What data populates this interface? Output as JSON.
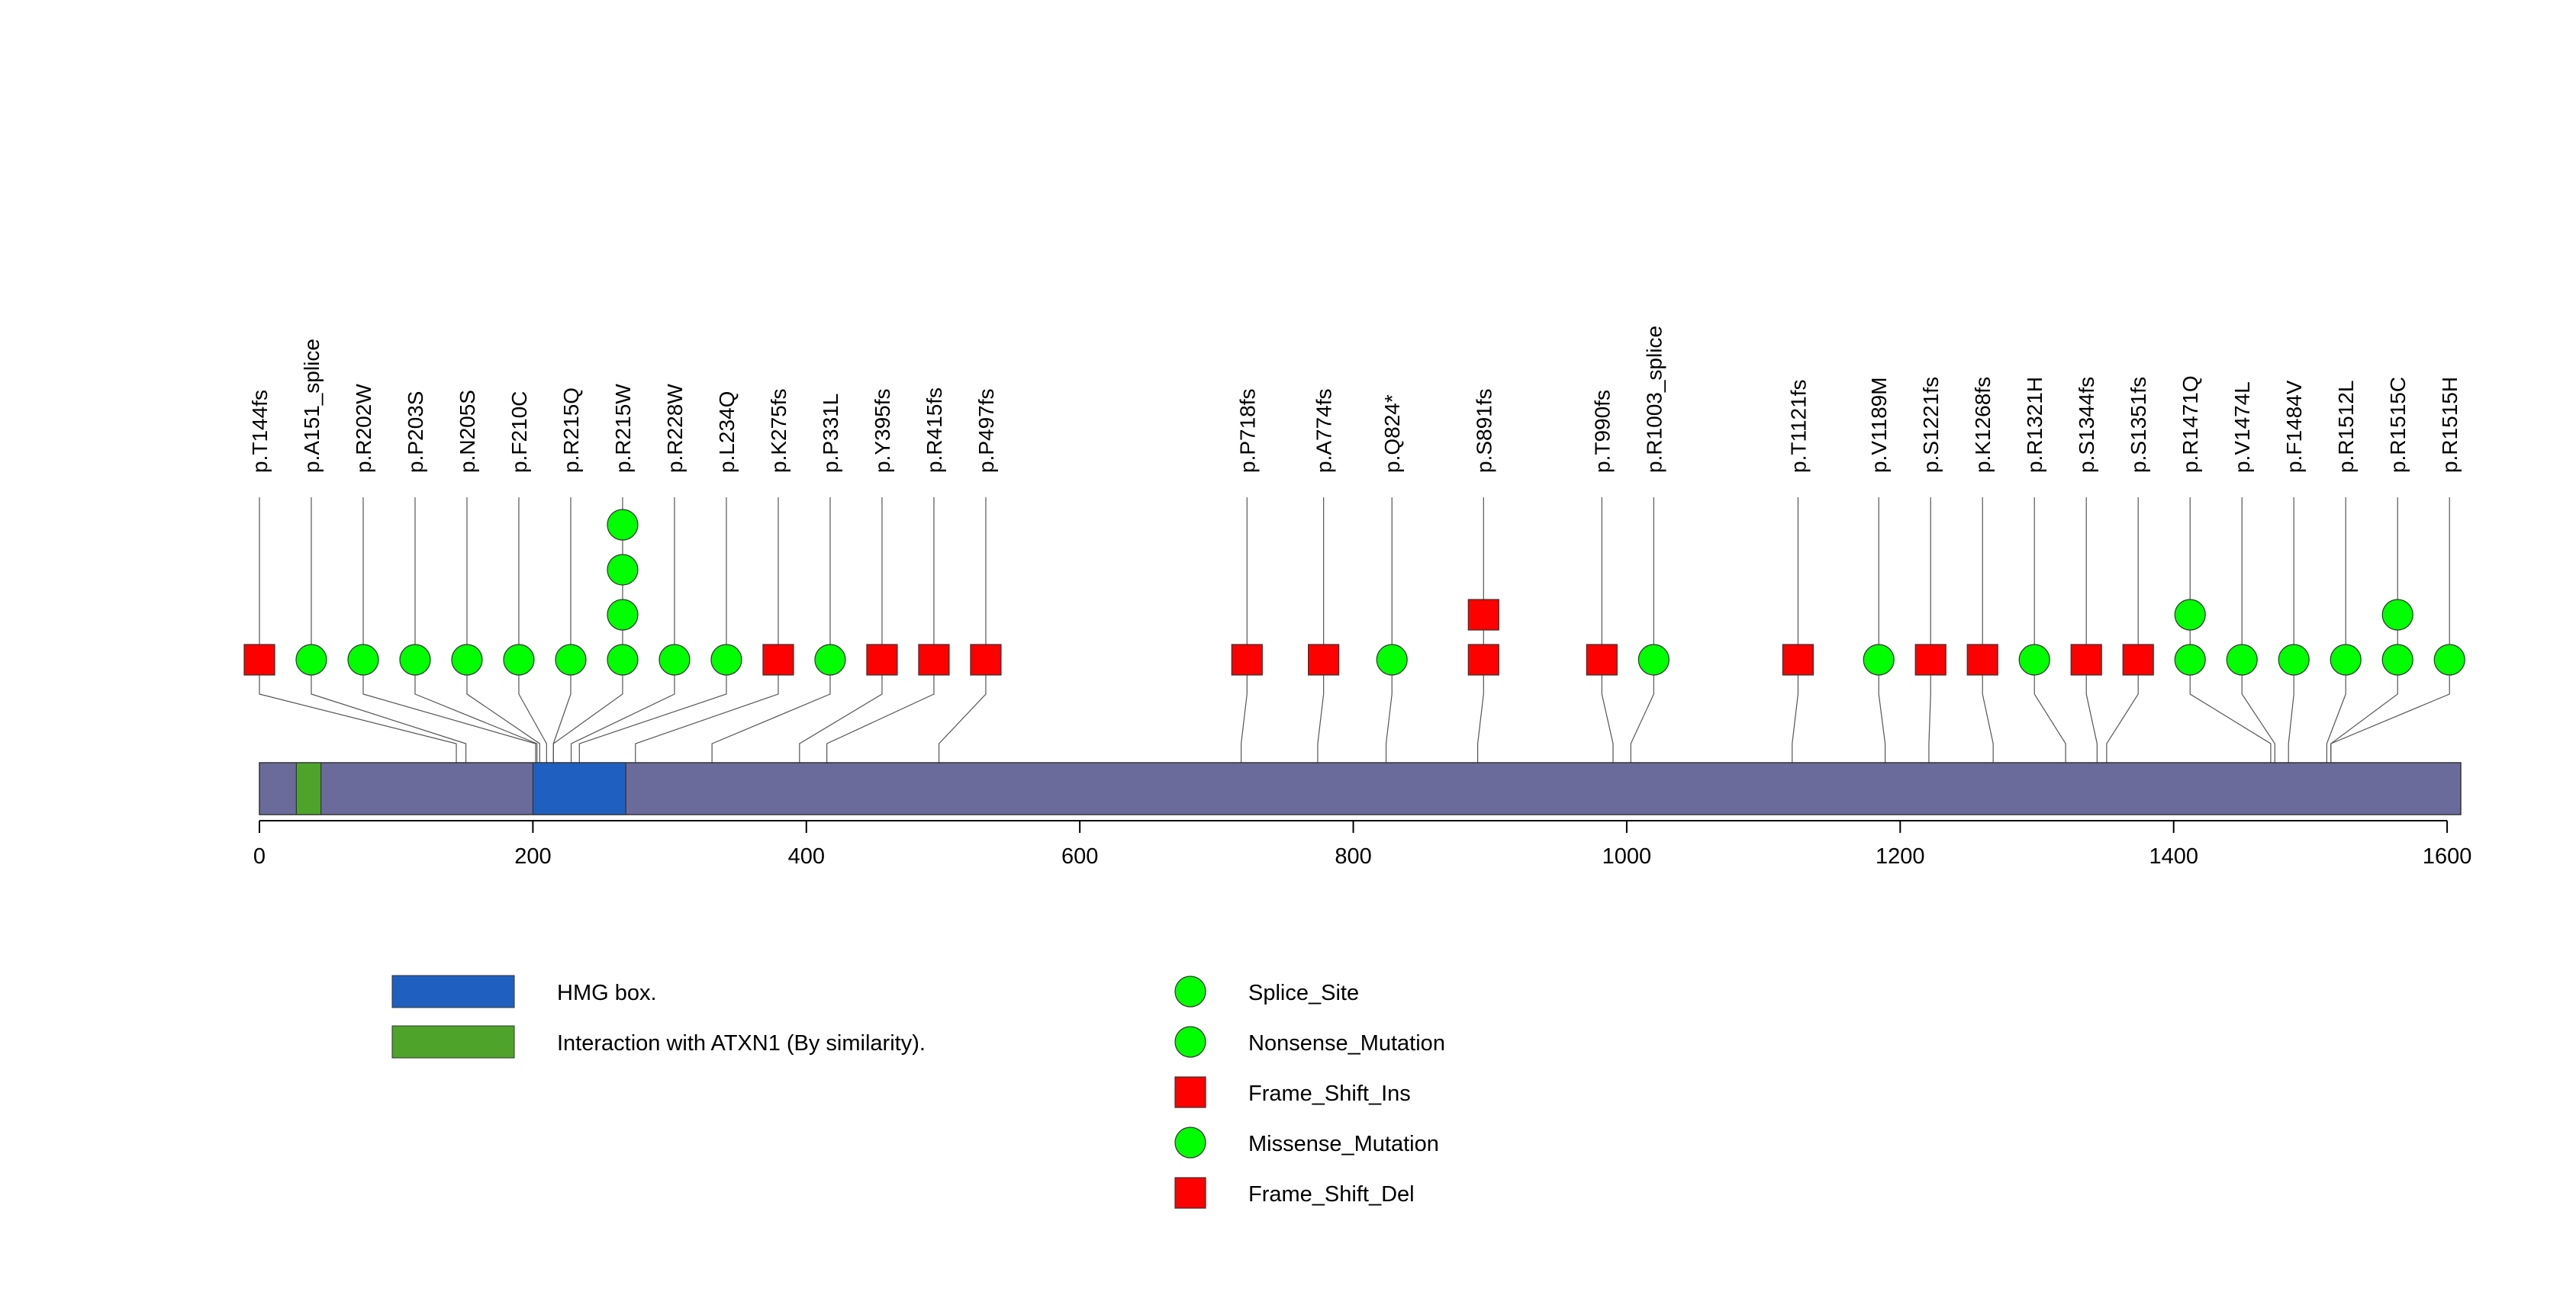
{
  "chart_data": {
    "type": "lollipop",
    "protein_length": 1610,
    "x_ticks": [
      "0",
      "200",
      "400",
      "600",
      "800",
      "1000",
      "1200",
      "1400",
      "1600"
    ],
    "domains": [
      {
        "name": "HMG box.",
        "start": 200,
        "end": 268,
        "color": "#1f5fbf"
      },
      {
        "name": "Interaction with ATXN1 (By similarity).",
        "start": 27,
        "end": 45,
        "color": "#4ea32b"
      }
    ],
    "legend": {
      "domains": [
        {
          "label": "HMG box.",
          "color": "#1f5fbf"
        },
        {
          "label": "Interaction with ATXN1 (By similarity).",
          "color": "#4ea32b"
        }
      ],
      "mutation_types": [
        {
          "label": "Splice_Site",
          "shape": "circle",
          "color": "#00ff00"
        },
        {
          "label": "Nonsense_Mutation",
          "shape": "circle",
          "color": "#00ff00"
        },
        {
          "label": "Frame_Shift_Ins",
          "shape": "square",
          "color": "#ff0000"
        },
        {
          "label": "Missense_Mutation",
          "shape": "circle",
          "color": "#00ff00"
        },
        {
          "label": "Frame_Shift_Del",
          "shape": "square",
          "color": "#ff0000"
        }
      ]
    },
    "mutations": [
      {
        "label": "p.T144fs",
        "position": 144,
        "markers": [
          "square"
        ]
      },
      {
        "label": "p.A151_splice",
        "position": 151,
        "markers": [
          "circle"
        ]
      },
      {
        "label": "p.R202W",
        "position": 202,
        "markers": [
          "circle"
        ]
      },
      {
        "label": "p.P203S",
        "position": 203,
        "markers": [
          "circle"
        ]
      },
      {
        "label": "p.N205S",
        "position": 205,
        "markers": [
          "circle"
        ]
      },
      {
        "label": "p.F210C",
        "position": 210,
        "markers": [
          "circle"
        ]
      },
      {
        "label": "p.R215Q",
        "position": 215,
        "markers": [
          "circle"
        ]
      },
      {
        "label": "p.R215W",
        "position": 215,
        "markers": [
          "circle",
          "circle",
          "circle",
          "circle"
        ]
      },
      {
        "label": "p.R228W",
        "position": 228,
        "markers": [
          "circle"
        ]
      },
      {
        "label": "p.L234Q",
        "position": 234,
        "markers": [
          "circle"
        ]
      },
      {
        "label": "p.K275fs",
        "position": 275,
        "markers": [
          "square"
        ]
      },
      {
        "label": "p.P331L",
        "position": 331,
        "markers": [
          "circle"
        ]
      },
      {
        "label": "p.Y395fs",
        "position": 395,
        "markers": [
          "square"
        ]
      },
      {
        "label": "p.R415fs",
        "position": 415,
        "markers": [
          "square"
        ]
      },
      {
        "label": "p.P497fs",
        "position": 497,
        "markers": [
          "square"
        ]
      },
      {
        "label": "p.P718fs",
        "position": 718,
        "markers": [
          "square"
        ]
      },
      {
        "label": "p.A774fs",
        "position": 774,
        "markers": [
          "square"
        ]
      },
      {
        "label": "p.Q824*",
        "position": 824,
        "markers": [
          "circle"
        ]
      },
      {
        "label": "p.S891fs",
        "position": 891,
        "markers": [
          "square",
          "square"
        ]
      },
      {
        "label": "p.T990fs",
        "position": 990,
        "markers": [
          "square"
        ]
      },
      {
        "label": "p.R1003_splice",
        "position": 1003,
        "markers": [
          "circle"
        ]
      },
      {
        "label": "p.T1121fs",
        "position": 1121,
        "markers": [
          "square"
        ]
      },
      {
        "label": "p.V1189M",
        "position": 1189,
        "markers": [
          "circle"
        ]
      },
      {
        "label": "p.S1221fs",
        "position": 1221,
        "markers": [
          "square"
        ]
      },
      {
        "label": "p.K1268fs",
        "position": 1268,
        "markers": [
          "square"
        ]
      },
      {
        "label": "p.R1321H",
        "position": 1321,
        "markers": [
          "circle"
        ]
      },
      {
        "label": "p.S1344fs",
        "position": 1344,
        "markers": [
          "square"
        ]
      },
      {
        "label": "p.S1351fs",
        "position": 1351,
        "markers": [
          "square"
        ]
      },
      {
        "label": "p.R1471Q",
        "position": 1471,
        "markers": [
          "circle",
          "circle"
        ]
      },
      {
        "label": "p.V1474L",
        "position": 1474,
        "markers": [
          "circle"
        ]
      },
      {
        "label": "p.F1484V",
        "position": 1484,
        "markers": [
          "circle"
        ]
      },
      {
        "label": "p.R1512L",
        "position": 1512,
        "markers": [
          "circle"
        ]
      },
      {
        "label": "p.R1515C",
        "position": 1515,
        "markers": [
          "circle",
          "circle"
        ]
      },
      {
        "label": "p.R1515H",
        "position": 1515,
        "markers": [
          "circle"
        ]
      }
    ]
  }
}
